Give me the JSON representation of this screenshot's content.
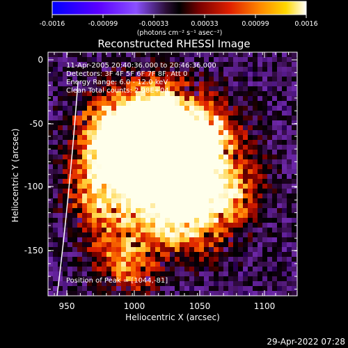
{
  "colorbar": {
    "tick_labels": [
      "-0.0016",
      "-0.00099",
      "-0.00033",
      "0.00033",
      "0.00099",
      "0.0016"
    ],
    "unit_label": "(photons cm⁻² s⁻¹ asec⁻²)",
    "range": [
      -0.0016,
      0.0016
    ],
    "colors": [
      "#0000ff",
      "#6a00ff",
      "#8b40ff",
      "#3a1040",
      "#000000",
      "#8a0000",
      "#e82000",
      "#ff8000",
      "#ffd000",
      "#ffffff"
    ]
  },
  "title": "Reconstructed RHESSI Image",
  "annotations": {
    "time": "11-Apr-2005 20:40:36.000 to 20:46:36.000",
    "detectors": "Detectors: 3F 4F 5F 6F 7F 8F, Att 0",
    "energy": "Energy Range: 6.0 - 12.0 keV",
    "clean": "Clean     Total counts: 2.98E+04",
    "peak": "Position of Peak = [1044,-81]"
  },
  "axes": {
    "xlabel": "Heliocentric X (arcsec)",
    "ylabel": "Heliocentric Y (arcsec)",
    "x_ticks": [
      950,
      1000,
      1050,
      1100
    ],
    "y_ticks": [
      0,
      -50,
      -100,
      -150
    ],
    "xlim": [
      935,
      1127
    ],
    "ylim": [
      -189,
      4
    ]
  },
  "footer_timestamp": "29-Apr-2022 07:28"
}
